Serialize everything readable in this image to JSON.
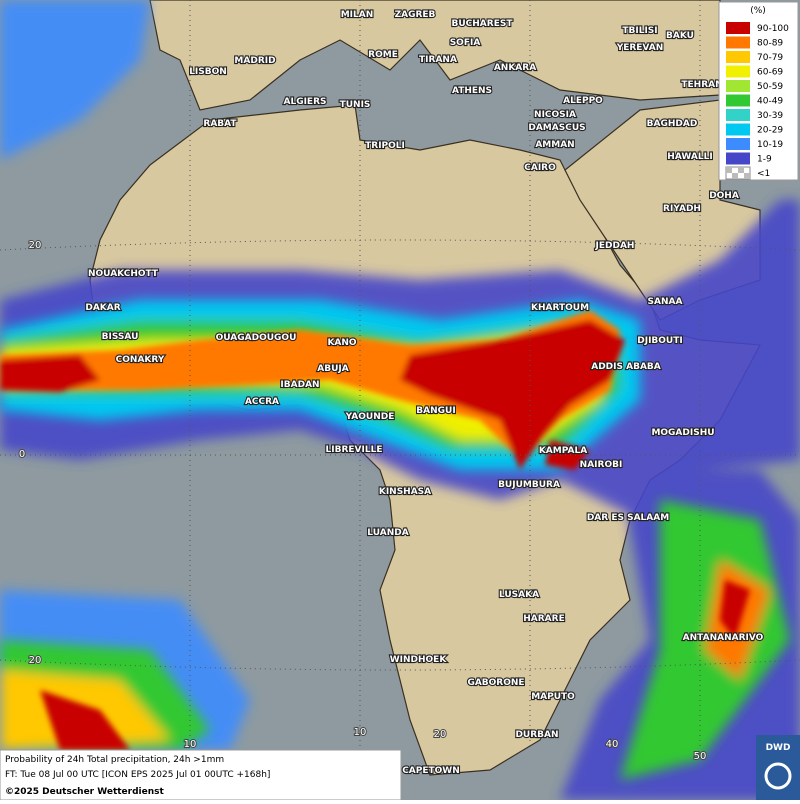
{
  "map": {
    "cities": [
      "MILAN",
      "ZAGREB",
      "BUCHAREST",
      "TBILISI",
      "BAKU",
      "SOFIA",
      "YEREVAN",
      "MADRID",
      "ROME",
      "TIRANA",
      "ANKARA",
      "LISBON",
      "ATHENS",
      "TEHRAN",
      "ALGIERS",
      "TUNIS",
      "ALEPPO",
      "NICOSIA",
      "RABAT",
      "BAGHDAD",
      "DAMASCUS",
      "TRIPOLI",
      "AMMAN",
      "HAWALLI",
      "CAIRO",
      "DOHA",
      "RIYADH",
      "JEDDAH",
      "NOUAKCHOTT",
      "SANAA",
      "DAKAR",
      "KHARTOUM",
      "BISSAU",
      "OUAGADOUGOU",
      "DJIBOUTI",
      "KANO",
      "CONAKRY",
      "ABUJA",
      "ADDIS ABABA",
      "IBADAN",
      "ACCRA",
      "YAOUNDE",
      "BANGUI",
      "MOGADISHU",
      "LIBREVILLE",
      "KAMPALA",
      "NAIROBI",
      "BUJUMBURA",
      "KINSHASA",
      "DAR ES SALAAM",
      "LUANDA",
      "LUSAKA",
      "HARARE",
      "ANTANANARIVO",
      "WINDHOEK",
      "GABORONE",
      "MAPUTO",
      "DURBAN",
      "CAPETOWN"
    ],
    "grid_labels": [
      "20",
      "0",
      "20",
      "10",
      "10",
      "20",
      "40",
      "50"
    ],
    "legend": {
      "title": "(%)",
      "items": [
        {
          "label": "90-100",
          "color": "#c80000"
        },
        {
          "label": "80-89",
          "color": "#ff7800"
        },
        {
          "label": "70-79",
          "color": "#ffc800"
        },
        {
          "label": "60-69",
          "color": "#f0f000"
        },
        {
          "label": "50-59",
          "color": "#a0e632"
        },
        {
          "label": "40-49",
          "color": "#32c832"
        },
        {
          "label": "30-39",
          "color": "#32d2c8"
        },
        {
          "label": "20-29",
          "color": "#00c8f0"
        },
        {
          "label": "10-19",
          "color": "#3c8cff"
        },
        {
          "label": "1-9",
          "color": "#4646c8"
        },
        {
          "label": "<1",
          "color": "#bbbbbb"
        }
      ]
    },
    "footer": {
      "line1": "Probability of 24h Total precipitation, 24h >1mm",
      "line2": "FT: Tue 08 Jul 00 UTC [ICON EPS 2025 Jul 01 00UTC +168h]",
      "copyright": "©2025 Deutscher Wetterdienst"
    },
    "logo": "DWD"
  }
}
